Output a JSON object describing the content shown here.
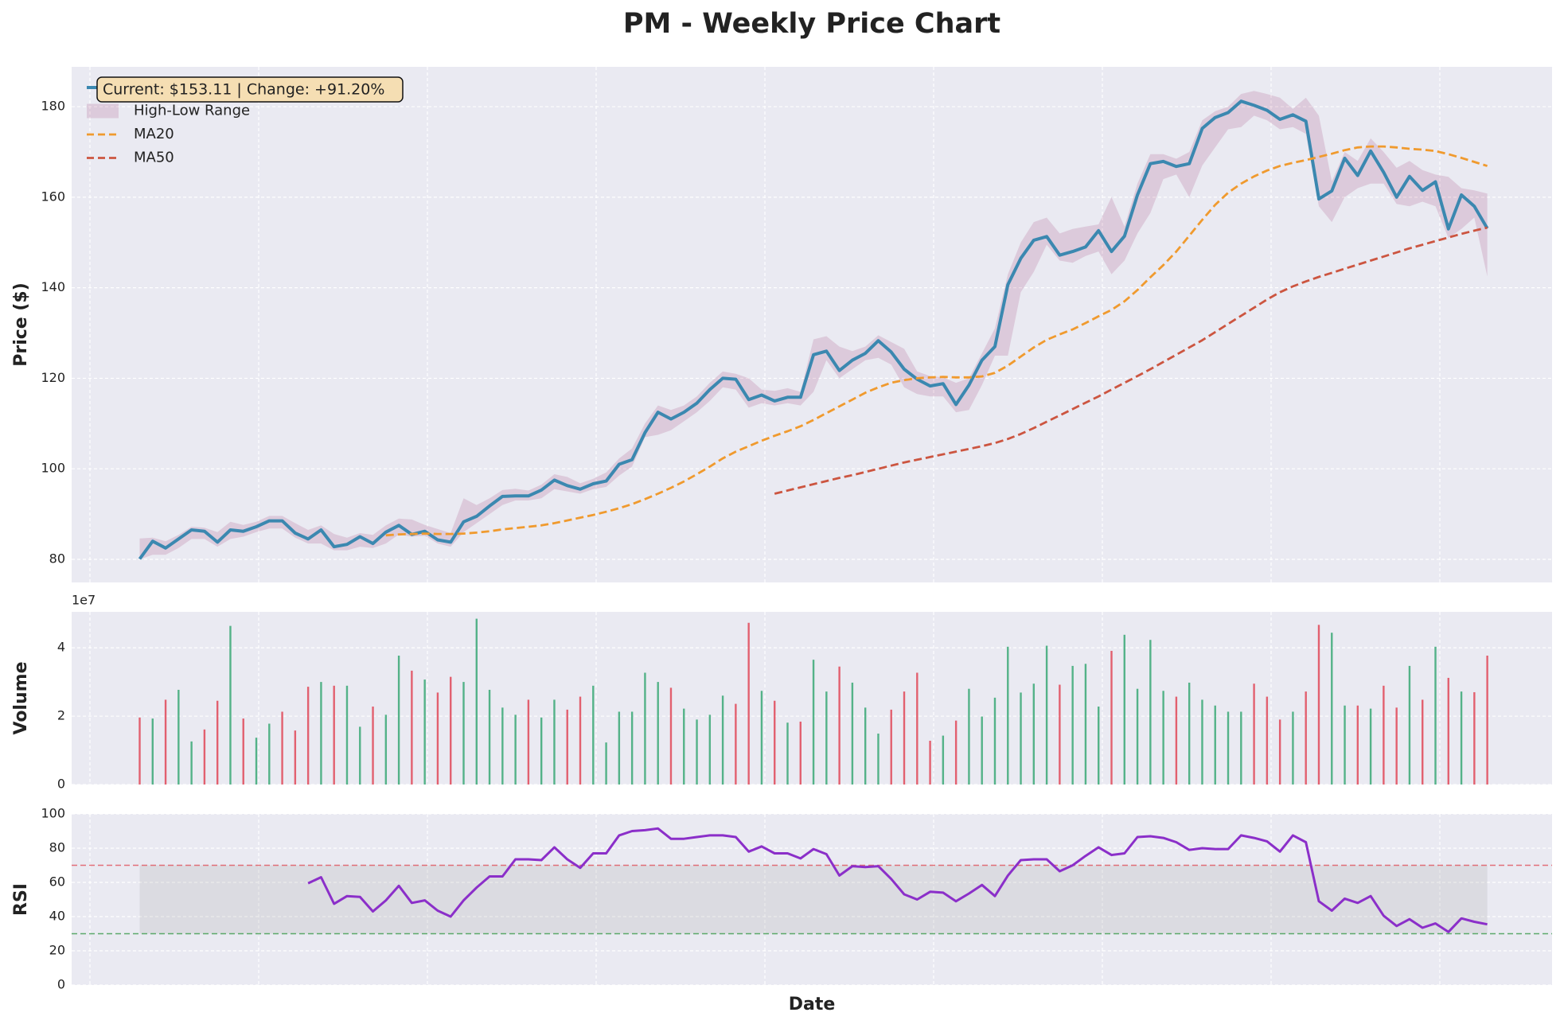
{
  "chart_data": [
    {
      "type": "line",
      "title": "PM - Weekly Price Chart",
      "ylabel": "Price ($)",
      "annotation": "Current: $153.11 | Change: +91.20%",
      "legend": "upper left",
      "ylim": [
        74.9,
        188.8
      ],
      "yticks": [
        80,
        100,
        120,
        140,
        160,
        180
      ],
      "grid": true,
      "series": [
        {
          "name": "Close Price",
          "color": "#3b88b0",
          "linestyle": "solid",
          "values": [
            80.08,
            84,
            82.5,
            84.5,
            86.5,
            86.2,
            83.8,
            86.5,
            86.2,
            87.2,
            88.5,
            88.5,
            85.8,
            84.5,
            86.5,
            82.8,
            83.3,
            85,
            83.5,
            86,
            87.5,
            85.5,
            86.2,
            84.3,
            83.8,
            88.3,
            89.5,
            91.8,
            93.9,
            94,
            94,
            95.3,
            97.5,
            96.3,
            95.5,
            96.7,
            97.3,
            101,
            102,
            108,
            112.5,
            111,
            112.5,
            114.5,
            117.5,
            120,
            119.8,
            115.3,
            116.3,
            115,
            115.8,
            115.8,
            125.2,
            126,
            121.7,
            124,
            125.5,
            128.3,
            125.8,
            122,
            119.8,
            118.3,
            118.8,
            114.2,
            118.5,
            124,
            127,
            140.7,
            146.5,
            150.5,
            151.3,
            147.2,
            148,
            149,
            152.6,
            148,
            151.4,
            160.5,
            167.4,
            167.9,
            166.8,
            167.4,
            175.2,
            177.6,
            178.7,
            181.2,
            180.3,
            179.2,
            177.2,
            178.2,
            176.8,
            159.6,
            161.4,
            168.6,
            164.8,
            170.2,
            165.5,
            160,
            164.6,
            161.5,
            163.4,
            153,
            160.5,
            158,
            153.11
          ]
        },
        {
          "name": "High-Low Range",
          "color": "#a23b72",
          "high": [
            84.6,
            84.8,
            84.0,
            85.4,
            87.2,
            87.0,
            86.0,
            88.3,
            87.6,
            88.3,
            89.6,
            89.6,
            88.0,
            86.5,
            87.5,
            85.6,
            84.8,
            85.8,
            85.4,
            87.5,
            89.0,
            88.8,
            87.6,
            86.7,
            85.8,
            93.5,
            92.0,
            93.5,
            95.3,
            95.6,
            95.2,
            96.5,
            98.8,
            98.2,
            96.8,
            97.8,
            99.2,
            102.3,
            104.5,
            110.0,
            114.0,
            113.0,
            114.0,
            116.0,
            119.0,
            121.5,
            121.0,
            120.0,
            117.5,
            117.2,
            117.8,
            117.0,
            128.6,
            129.3,
            127.0,
            126.0,
            127.0,
            129.5,
            128.0,
            126.5,
            121.5,
            120.5,
            120.2,
            119.0,
            120.0,
            125.5,
            131.0,
            143.0,
            150.0,
            154.5,
            155.5,
            152.0,
            153.0,
            153.5,
            154.0,
            160.0,
            153.5,
            163.0,
            169.5,
            169.5,
            168.5,
            170.0,
            177.0,
            179.0,
            180.0,
            182.8,
            183.5,
            182.8,
            182.0,
            179.5,
            182.0,
            178.0,
            163.5,
            170.0,
            168.0,
            173.0,
            170.0,
            166.5,
            168.0,
            166.0,
            165.0,
            164.5,
            162.0,
            161.5,
            160.8
          ],
          "low": [
            80.0,
            81.0,
            81.0,
            82.5,
            84.5,
            84.5,
            82.8,
            84.5,
            85.0,
            86.0,
            86.8,
            86.8,
            84.8,
            83.5,
            83.5,
            82.0,
            82.0,
            82.8,
            82.5,
            83.5,
            85.5,
            85.0,
            85.2,
            83.5,
            82.8,
            86.0,
            88.0,
            90.0,
            92.0,
            93.0,
            93.0,
            93.5,
            95.5,
            95.0,
            94.5,
            95.5,
            96.0,
            98.5,
            100.5,
            107.0,
            107.5,
            108.5,
            110.5,
            112.5,
            115.0,
            118.0,
            117.5,
            113.5,
            114.5,
            114.0,
            114.5,
            114.0,
            117.0,
            124.0,
            120.0,
            122.0,
            124.0,
            124.5,
            123.0,
            118.0,
            116.5,
            116.0,
            116.0,
            112.5,
            113.0,
            118.5,
            125.0,
            125.0,
            139.0,
            143.5,
            149.5,
            146.0,
            145.5,
            147.0,
            148.0,
            143.0,
            146.0,
            152.0,
            156.5,
            164.0,
            165.0,
            160.0,
            167.0,
            171.0,
            175.0,
            175.5,
            178.0,
            177.0,
            175.0,
            175.5,
            174.0,
            158.0,
            154.5,
            160.0,
            162.0,
            163.0,
            163.0,
            158.5,
            158.0,
            159.0,
            158.0,
            151.0,
            153.0,
            155.5,
            142.5
          ]
        },
        {
          "name": "MA20",
          "color": "#f09a2e",
          "linestyle": "dashed",
          "values": [
            null,
            null,
            null,
            null,
            null,
            null,
            null,
            null,
            null,
            null,
            null,
            null,
            null,
            null,
            null,
            null,
            null,
            null,
            null,
            85.3,
            85.5,
            85.6,
            85.7,
            85.6,
            85.6,
            85.7,
            85.9,
            86.2,
            86.6,
            86.9,
            87.2,
            87.5,
            88.0,
            88.6,
            89.2,
            89.8,
            90.5,
            91.3,
            92.2,
            93.3,
            94.5,
            95.8,
            97.2,
            98.8,
            100.5,
            102.3,
            103.8,
            105.0,
            106.2,
            107.3,
            108.3,
            109.4,
            110.8,
            112.3,
            113.8,
            115.3,
            116.8,
            118.0,
            119.0,
            119.6,
            120.0,
            120.2,
            120.3,
            120.2,
            120.2,
            120.4,
            121.2,
            122.8,
            124.8,
            126.8,
            128.5,
            129.7,
            130.8,
            132.2,
            133.7,
            135.1,
            137.0,
            139.5,
            142.3,
            145.0,
            148.0,
            151.5,
            155.0,
            158.3,
            161.0,
            163.0,
            164.6,
            165.9,
            166.9,
            167.6,
            168.2,
            168.9,
            169.6,
            170.4,
            171.0,
            171.2,
            171.2,
            171.0,
            170.7,
            170.5,
            170.2,
            169.5,
            168.7,
            167.8,
            166.9
          ]
        },
        {
          "name": "MA50",
          "color": "#cc5540",
          "linestyle": "dashed",
          "values": [
            null,
            null,
            null,
            null,
            null,
            null,
            null,
            null,
            null,
            null,
            null,
            null,
            null,
            null,
            null,
            null,
            null,
            null,
            null,
            null,
            null,
            null,
            null,
            null,
            null,
            null,
            null,
            null,
            null,
            null,
            null,
            null,
            null,
            null,
            null,
            null,
            null,
            null,
            null,
            null,
            null,
            null,
            null,
            null,
            null,
            null,
            null,
            null,
            null,
            94.5,
            95.2,
            95.9,
            96.6,
            97.3,
            98.0,
            98.6,
            99.3,
            100.0,
            100.7,
            101.4,
            102.0,
            102.6,
            103.2,
            103.8,
            104.4,
            105.0,
            105.7,
            106.6,
            107.7,
            109.0,
            110.4,
            111.8,
            113.2,
            114.6,
            116.0,
            117.5,
            119.0,
            120.5,
            122.0,
            123.6,
            125.2,
            126.8,
            128.4,
            130.2,
            132.0,
            133.8,
            135.6,
            137.4,
            139.0,
            140.3,
            141.4,
            142.4,
            143.3,
            144.2,
            145.1,
            146.0,
            146.9,
            147.8,
            148.7,
            149.5,
            150.3,
            151.1,
            151.9,
            152.6,
            153.3
          ]
        }
      ]
    },
    {
      "type": "bar",
      "ylabel": "Volume",
      "offset_label": "1e7",
      "up_color": "#3aa876",
      "down_color": "#e04858",
      "ylim": [
        0,
        5.05
      ],
      "yticks": [
        0,
        2,
        4
      ],
      "grid": true,
      "values": [
        1.96,
        1.93,
        2.48,
        2.77,
        1.26,
        1.61,
        2.45,
        4.64,
        1.93,
        1.37,
        1.78,
        2.13,
        1.58,
        2.86,
        3.0,
        2.89,
        2.89,
        1.69,
        2.28,
        2.04,
        3.77,
        3.33,
        3.07,
        2.69,
        3.15,
        3.0,
        4.85,
        2.77,
        2.25,
        2.04,
        2.48,
        1.96,
        2.48,
        2.19,
        2.57,
        2.89,
        1.23,
        2.13,
        2.13,
        3.27,
        3.0,
        2.83,
        2.22,
        1.9,
        2.04,
        2.6,
        2.36,
        4.73,
        2.74,
        2.45,
        1.81,
        1.84,
        3.65,
        2.72,
        3.45,
        2.98,
        2.25,
        1.49,
        2.19,
        2.72,
        3.27,
        1.28,
        1.43,
        1.87,
        2.8,
        1.99,
        2.54,
        4.03,
        2.69,
        2.95,
        4.06,
        2.92,
        3.47,
        3.53,
        2.28,
        3.91,
        4.38,
        2.8,
        4.23,
        2.74,
        2.57,
        2.98,
        2.48,
        2.31,
        2.13,
        2.13,
        2.95,
        2.57,
        1.9,
        2.13,
        2.72,
        4.67,
        4.44,
        2.31,
        2.31,
        2.22,
        2.89,
        2.25,
        3.47,
        2.48,
        4.03,
        3.12,
        2.72,
        2.7,
        3.77
      ]
    },
    {
      "type": "line",
      "ylabel": "RSI",
      "xlabel": "Date",
      "color": "#8b2fc9",
      "overbought": 70,
      "oversold": 30,
      "ylim": [
        0,
        100
      ],
      "yticks": [
        0,
        20,
        40,
        60,
        80,
        100
      ],
      "grid": true,
      "values": [
        null,
        null,
        null,
        null,
        null,
        null,
        null,
        null,
        null,
        null,
        null,
        null,
        null,
        59.5,
        63,
        47.5,
        52,
        51.5,
        43,
        49.5,
        58,
        48,
        49.5,
        43.5,
        40,
        49.5,
        57,
        63.5,
        63.5,
        73.5,
        73.5,
        73,
        80.5,
        73.5,
        68.5,
        77,
        77,
        87.5,
        90,
        90.5,
        91.5,
        85.5,
        85.5,
        86.5,
        87.5,
        87.5,
        86.5,
        78,
        81,
        77,
        77,
        74,
        79.5,
        76.5,
        64,
        69.5,
        69,
        69.5,
        62,
        53,
        50,
        54.5,
        54,
        49,
        53.5,
        58.5,
        52,
        64,
        73,
        73.5,
        73.5,
        66.5,
        70,
        75.5,
        80.5,
        76,
        77,
        86.5,
        87,
        86,
        83.5,
        79,
        80,
        79.5,
        79.5,
        87.5,
        86,
        84,
        78,
        87.5,
        83.5,
        49,
        43.5,
        50.5,
        48,
        52,
        40.5,
        34.5,
        38.5,
        33.5,
        36,
        31,
        39,
        37,
        35.5
      ]
    }
  ]
}
